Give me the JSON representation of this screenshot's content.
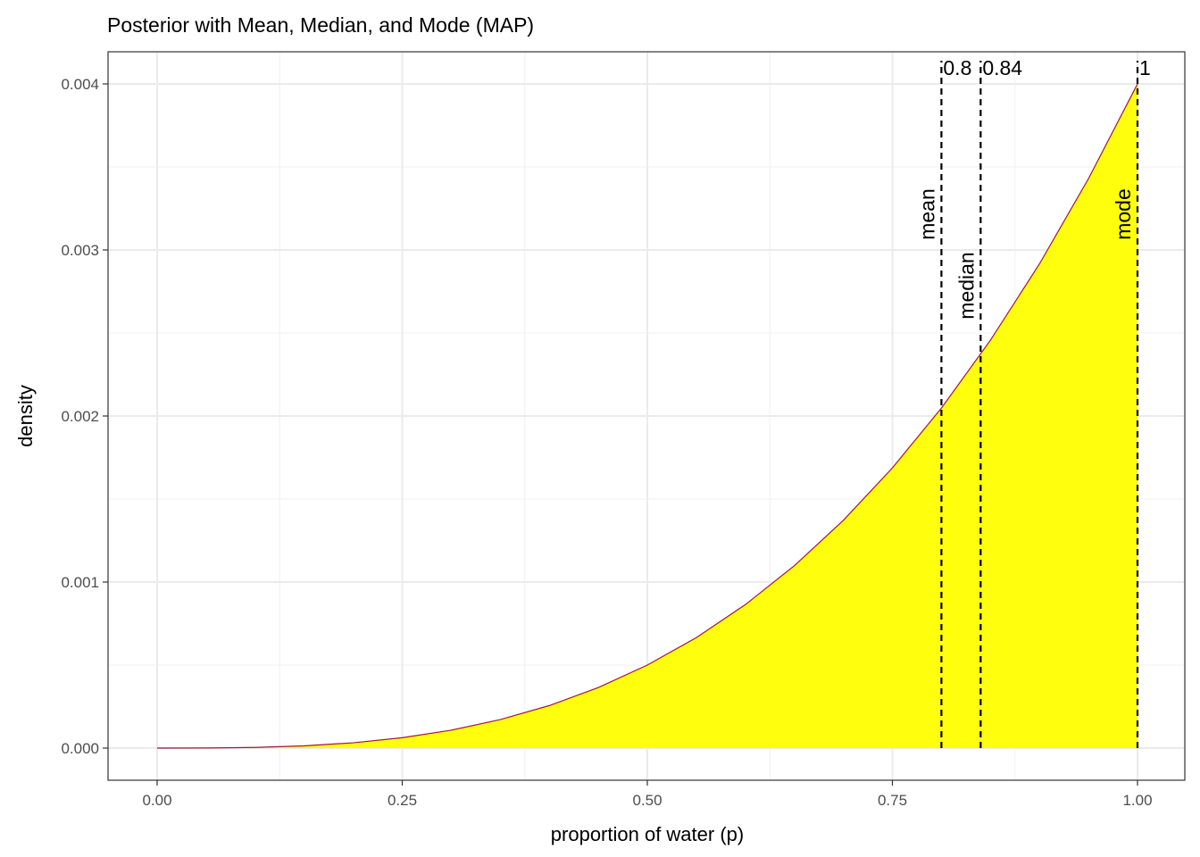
{
  "chart_data": {
    "type": "area",
    "title": "Posterior with Mean, Median, and Mode (MAP)",
    "xlabel": "proportion of water (p)",
    "ylabel": "density",
    "xlim": [
      0,
      1
    ],
    "ylim": [
      0,
      0.004
    ],
    "x_ticks": [
      0,
      0.25,
      0.5,
      0.75,
      1.0
    ],
    "x_tick_labels": [
      "0.00",
      "0.25",
      "0.50",
      "0.75",
      "1.00"
    ],
    "y_ticks": [
      0,
      0.001,
      0.002,
      0.003,
      0.004
    ],
    "y_tick_labels": [
      "0.000",
      "0.001",
      "0.002",
      "0.003",
      "0.004"
    ],
    "grid": true,
    "series": [
      {
        "x": [
          0,
          0.05,
          0.1,
          0.15,
          0.2,
          0.25,
          0.3,
          0.35,
          0.4,
          0.45,
          0.5,
          0.55,
          0.6,
          0.65,
          0.7,
          0.75,
          0.8,
          0.85,
          0.9,
          0.95,
          1.0
        ],
        "y": [
          0,
          5e-07,
          4e-06,
          1.35e-05,
          3.2e-05,
          6.25e-05,
          0.000108,
          0.0001715,
          0.000256,
          0.0003645,
          0.0005,
          0.0006655,
          0.000864,
          0.0010985,
          0.001372,
          0.0016875,
          0.002048,
          0.0024565,
          0.002916,
          0.0034295,
          0.004
        ],
        "fill_color": "#ffff0d",
        "line_color": "#a0163a"
      }
    ],
    "annotations": [
      {
        "x": 0.8,
        "value_label": "0.8",
        "name_label": "mean"
      },
      {
        "x": 0.84,
        "value_label": "0.84",
        "name_label": "median"
      },
      {
        "x": 1.0,
        "value_label": "1",
        "name_label": "mode"
      }
    ]
  }
}
